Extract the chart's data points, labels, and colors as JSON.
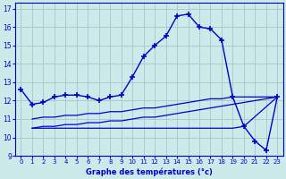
{
  "bg_color": "#cdeaea",
  "grid_color": "#aacccc",
  "line_color": "#0000cc",
  "title": "Graphe des températures (°c)",
  "xlim": [
    -0.5,
    23.5
  ],
  "ylim": [
    9,
    17.3
  ],
  "yticks": [
    9,
    10,
    11,
    12,
    13,
    14,
    15,
    16,
    17
  ],
  "xticks": [
    0,
    1,
    2,
    3,
    4,
    5,
    6,
    7,
    8,
    9,
    10,
    11,
    12,
    13,
    14,
    15,
    16,
    17,
    18,
    19,
    20,
    21,
    22,
    23
  ],
  "main_x": [
    0,
    1,
    2,
    3,
    4,
    5,
    6,
    7,
    8,
    9,
    10,
    11,
    12,
    13,
    14,
    15,
    16,
    17,
    18,
    19,
    20,
    21,
    22,
    23
  ],
  "main_y": [
    12.6,
    11.8,
    11.9,
    12.2,
    12.3,
    12.3,
    12.2,
    12.0,
    12.2,
    12.3,
    13.3,
    14.4,
    15.0,
    15.5,
    16.6,
    16.7,
    16.0,
    15.9,
    15.3,
    12.2,
    10.6,
    9.8,
    9.3,
    12.2
  ],
  "line2_x": [
    1,
    2,
    3,
    4,
    5,
    6,
    7,
    8,
    9,
    10,
    11,
    12,
    13,
    14,
    15,
    16,
    17,
    18,
    19,
    20,
    22,
    23
  ],
  "line2_y": [
    10.5,
    10.6,
    10.6,
    10.7,
    10.7,
    10.8,
    10.8,
    10.9,
    10.9,
    11.0,
    11.1,
    11.1,
    11.2,
    11.3,
    11.4,
    11.5,
    11.6,
    11.7,
    11.8,
    11.9,
    12.1,
    12.2
  ],
  "line3_x": [
    1,
    19,
    20,
    23
  ],
  "line3_y": [
    10.5,
    10.5,
    10.6,
    12.2
  ],
  "line4_x": [
    1,
    2,
    3,
    4,
    5,
    6,
    7,
    8,
    9,
    10,
    11,
    12,
    13,
    14,
    15,
    16,
    17,
    18,
    19,
    20,
    22,
    23
  ],
  "line4_y": [
    11.0,
    11.1,
    11.1,
    11.2,
    11.2,
    11.3,
    11.3,
    11.4,
    11.4,
    11.5,
    11.6,
    11.6,
    11.7,
    11.8,
    11.9,
    12.0,
    12.1,
    12.1,
    12.2,
    12.2,
    12.2,
    12.2
  ]
}
